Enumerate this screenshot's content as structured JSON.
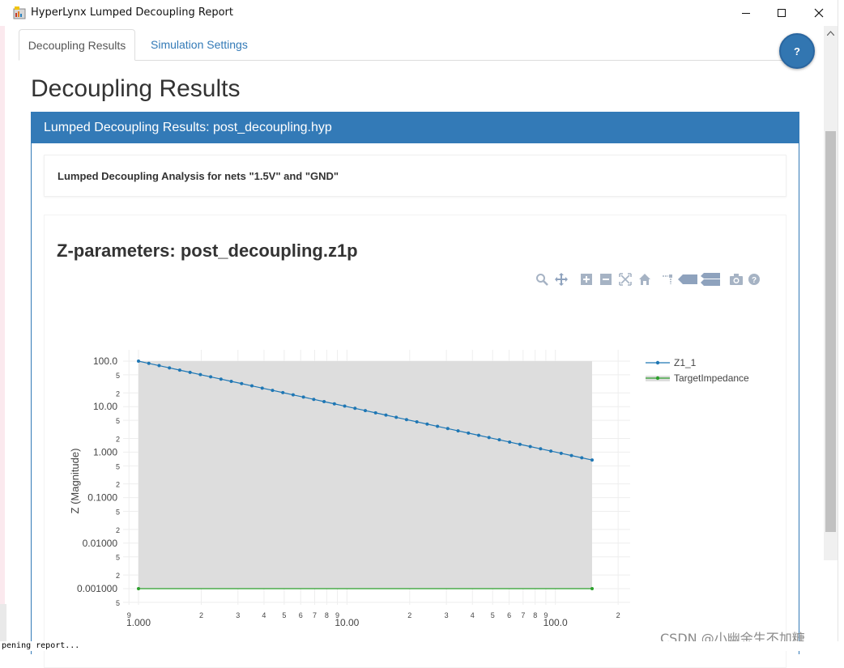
{
  "window": {
    "title": "HyperLynx Lumped Decoupling Report",
    "icon": "report-app-icon"
  },
  "tabs": [
    {
      "label": "Decoupling Results",
      "active": true
    },
    {
      "label": "Simulation Settings",
      "active": false
    }
  ],
  "help_button": {
    "label": "?"
  },
  "page_title": "Decoupling Results",
  "panel": {
    "heading": "Lumped Decoupling Results: post_decoupling.hyp",
    "analysis_text": "Lumped Decoupling Analysis for nets \"1.5V\" and \"GND\"",
    "chart_title": "Z-parameters: post_decoupling.z1p"
  },
  "modebar": [
    "zoom-icon",
    "pan-icon",
    "zoom-in-icon",
    "zoom-out-icon",
    "autoscale-icon",
    "reset-axes-icon",
    "spike-lines-icon",
    "hover-closest-icon",
    "hover-compare-icon",
    "camera-icon",
    "plotly-help-icon"
  ],
  "chart_data": {
    "type": "line",
    "ylabel": "Z (Magnitude)",
    "x_scale": "log",
    "y_scale": "log",
    "xlim": [
      0.9,
      210
    ],
    "ylim": [
      0.0006,
      140
    ],
    "x_tick_labels": [
      "1.000",
      "10.00",
      "100.0"
    ],
    "x_minor_tick_labels": [
      "9",
      "2",
      "3",
      "4",
      "5",
      "6",
      "7",
      "8",
      "9",
      "2",
      "3",
      "4",
      "5",
      "6",
      "7",
      "8",
      "9",
      "2"
    ],
    "y_tick_labels": [
      "100.0",
      "10.00",
      "1.000",
      "0.1000",
      "0.01000",
      "0.001000"
    ],
    "y_minor_tick_labels": [
      "5",
      "2"
    ],
    "series": [
      {
        "name": "Z1_1",
        "color": "#1f77b4",
        "x_range": [
          1,
          150
        ],
        "y_start": 100,
        "y_end": 0.67,
        "points": 45
      },
      {
        "name": "TargetImpedance",
        "color": "#2ca02c",
        "x_range": [
          1,
          150
        ],
        "y_start": 0.001,
        "y_end": 0.001,
        "points": 2
      }
    ],
    "shaded_region": {
      "x_range": [
        1,
        150
      ],
      "y_range": [
        0.001,
        100
      ],
      "color": "#dddddd"
    },
    "legend_position": "top-right"
  },
  "status": {
    "text": "pening report..."
  },
  "watermark": "CSDN @小幽余生不加糖"
}
